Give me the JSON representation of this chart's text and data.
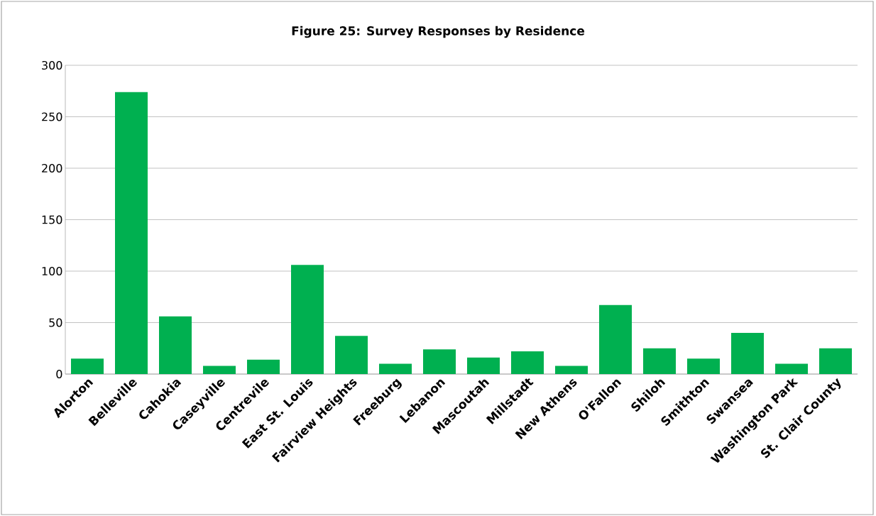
{
  "chart_data": {
    "type": "bar",
    "title": "Figure 25: Survey Responses by Residence",
    "categories": [
      "Alorton",
      "Belleville",
      "Cahokia",
      "Caseyville",
      "Centrevile",
      "East St. Louis",
      "Fairview Heights",
      "Freeburg",
      "Lebanon",
      "Mascoutah",
      "Millstadt",
      "New Athens",
      "O'Fallon",
      "Shiloh",
      "Smithton",
      "Swansea",
      "Washington Park",
      "St. Clair County"
    ],
    "values": [
      15,
      274,
      56,
      8,
      14,
      106,
      37,
      10,
      24,
      16,
      22,
      8,
      67,
      25,
      15,
      40,
      10,
      25
    ],
    "color": "#00b050",
    "ylim": [
      0,
      300
    ],
    "yticks": [
      0,
      50,
      100,
      150,
      200,
      250,
      300
    ],
    "grid": "y"
  }
}
